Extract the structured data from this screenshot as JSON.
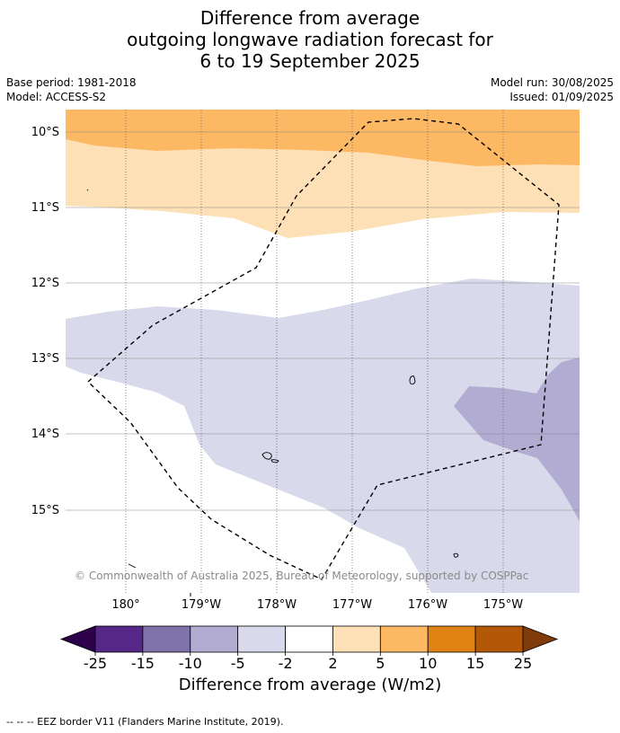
{
  "title": {
    "line1": "Difference from average",
    "line2": "outgoing longwave radiation forecast for",
    "line3": "6 to 19 September 2025"
  },
  "meta_left": {
    "base_period": "Base period: 1981-2018",
    "model": "Model: ACCESS-S2"
  },
  "meta_right": {
    "model_run": "Model run: 30/08/2025",
    "issued": "Issued: 01/09/2025"
  },
  "map": {
    "lat_labels": [
      "10°S",
      "11°S",
      "12°S",
      "13°S",
      "14°S",
      "15°S"
    ],
    "lon_labels": [
      "180°",
      "179°W",
      "178°W",
      "177°W",
      "176°W",
      "175°W"
    ],
    "copyright": "© Commonwealth of Australia 2025, Bureau of Meteorology, supported by COSPPac",
    "colors": {
      "orange_mid": "#fdb863",
      "orange_light": "#fee0b6",
      "purple_pale": "#d8daeb",
      "purple_light": "#b2abd2"
    }
  },
  "colorbar": {
    "ticks": [
      "-25",
      "-15",
      "-10",
      "-5",
      "-2",
      "2",
      "5",
      "10",
      "15",
      "25"
    ],
    "colors": [
      "#2d004b",
      "#542788",
      "#8073ac",
      "#b2abd2",
      "#d8daeb",
      "#ffffff",
      "#fee0b6",
      "#fdb863",
      "#e08214",
      "#b35806",
      "#7f3b08"
    ],
    "label": "Difference from average (W/m2)"
  },
  "footer": {
    "legend_text": "--  --  -- EEZ border V11 (Flanders Marine Institute, 2019)."
  }
}
